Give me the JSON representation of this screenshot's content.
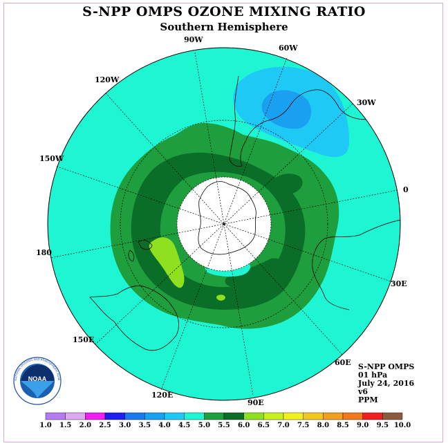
{
  "title": "S-NPP OMPS OZONE MIXING RATIO",
  "subtitle": "Southern Hemisphere",
  "map": {
    "longitude_labels": [
      "90W",
      "60W",
      "30W",
      "0",
      "30E",
      "60E",
      "90E",
      "120E",
      "150E",
      "180",
      "150W",
      "120W"
    ]
  },
  "info": {
    "instrument": "S-NPP OMPS",
    "level": "01 hPa",
    "date": "July 24, 2016",
    "version": "v6",
    "units": "PPM"
  },
  "colorbar": {
    "labels": [
      "1.0",
      "1.5",
      "2.0",
      "2.5",
      "3.0",
      "3.5",
      "4.0",
      "4.5",
      "5.0",
      "5.5",
      "6.0",
      "6.5",
      "7.0",
      "7.5",
      "8.0",
      "8.5",
      "9.0",
      "9.5",
      "10.0"
    ],
    "colors": [
      "#b57cf0",
      "#dcaaf0",
      "#f01ef0",
      "#1e1ef0",
      "#1a78f0",
      "#1aa0f0",
      "#1ecaf5",
      "#1ef5d2",
      "#1e9e3c",
      "#0a6e28",
      "#8fe01e",
      "#c8f01e",
      "#f0f01e",
      "#f0c81e",
      "#f0a01e",
      "#f0781e",
      "#f01e1e",
      "#8c5a3c"
    ]
  },
  "colors": {
    "background_field": "#1ef5d2",
    "moderate_field": "#1e9e3c",
    "high_field": "#0a6e28",
    "peak_field": "#8fe01e",
    "low_region": "#1ecaf5",
    "lowest_region": "#1aa0f0"
  },
  "logo": {
    "text": "NOAA",
    "ring_text": "NATIONAL OCEANIC AND ATMOSPHERIC ADMINISTRATION"
  }
}
